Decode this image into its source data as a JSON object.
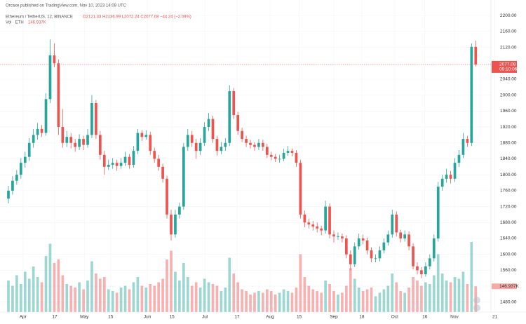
{
  "chart_data": {
    "type": "candlestick",
    "published": "Orcaxe published on TradingView.com, Nov 10, 2023 14:09 UTC",
    "symbol": "Ethereum / TetherUS, 12, BINANCE",
    "ohlc_text": "O2121.33 H2136.99 L2072.24 C2077.08 −44.24 (−2.09%)",
    "volume_title": "Vol · ETH",
    "volume_text": "146.937K",
    "countdown": "09:10:06",
    "up_color": "#26a69a",
    "down_color": "#ef5350",
    "grid": true,
    "xlim": [
      -0.5,
      117.5
    ],
    "xticks": [
      {
        "value": 3.5,
        "label": "Apr"
      },
      {
        "value": 11.1,
        "label": "17"
      },
      {
        "value": 18.2,
        "label": "May"
      },
      {
        "value": 24.5,
        "label": "15"
      },
      {
        "value": 33.3,
        "label": "Jun"
      },
      {
        "value": 39.2,
        "label": "15"
      },
      {
        "value": 47.1,
        "label": "Jul"
      },
      {
        "value": 54.8,
        "label": "17"
      },
      {
        "value": 62.7,
        "label": "Aug"
      },
      {
        "value": 69.7,
        "label": "15"
      },
      {
        "value": 78,
        "label": "Sep"
      },
      {
        "value": 84.7,
        "label": "18"
      },
      {
        "value": 92.6,
        "label": "Oct"
      },
      {
        "value": 99.8,
        "label": "16"
      },
      {
        "value": 106.9,
        "label": "Nov"
      },
      {
        "value": 116.6,
        "label": "21"
      }
    ],
    "ylim": [
      1455,
      2239
    ],
    "yticks": [
      {
        "value": 2200,
        "label": "2200.00"
      },
      {
        "value": 2160,
        "label": "2160.00"
      },
      {
        "value": 2120,
        "label": "2120.00"
      },
      {
        "value": 2040,
        "label": "2040.00"
      },
      {
        "value": 2000,
        "label": "2000.00"
      },
      {
        "value": 1960,
        "label": "1960.00"
      },
      {
        "value": 1920,
        "label": "1920.00"
      },
      {
        "value": 1880,
        "label": "1880.00"
      },
      {
        "value": 1840,
        "label": "1840.00"
      },
      {
        "value": 1800,
        "label": "1800.00"
      },
      {
        "value": 1760,
        "label": "1760.00"
      },
      {
        "value": 1720,
        "label": "1720.00"
      },
      {
        "value": 1680,
        "label": "1680.00"
      },
      {
        "value": 1640,
        "label": "1640.00"
      },
      {
        "value": 1600,
        "label": "1600.00"
      },
      {
        "value": 1560,
        "label": "1560.00"
      },
      {
        "value": 1520,
        "label": "1520.00"
      },
      {
        "value": 1480,
        "label": "1480.00"
      }
    ],
    "volume_lim": [
      0,
      1000
    ],
    "candles": [
      [
        1740,
        1772,
        1728,
        1760
      ],
      [
        1760,
        1797,
        1750,
        1785
      ],
      [
        1785,
        1812,
        1775,
        1800
      ],
      [
        1800,
        1842,
        1790,
        1830
      ],
      [
        1830,
        1858,
        1818,
        1845
      ],
      [
        1845,
        1892,
        1835,
        1880
      ],
      [
        1880,
        1915,
        1868,
        1900
      ],
      [
        1900,
        1930,
        1888,
        1915
      ],
      [
        1915,
        1925,
        1895,
        1905
      ],
      [
        1905,
        2005,
        1898,
        1990
      ],
      [
        1990,
        2140,
        1980,
        2100
      ],
      [
        2100,
        2130,
        2070,
        2080
      ],
      [
        2080,
        2090,
        1900,
        1920
      ],
      [
        1920,
        1965,
        1868,
        1880
      ],
      [
        1880,
        1910,
        1870,
        1895
      ],
      [
        1895,
        1905,
        1866,
        1880
      ],
      [
        1880,
        1890,
        1858,
        1870
      ],
      [
        1870,
        1902,
        1862,
        1890
      ],
      [
        1890,
        1898,
        1862,
        1875
      ],
      [
        1875,
        1915,
        1868,
        1900
      ],
      [
        1900,
        2000,
        1892,
        1980
      ],
      [
        1980,
        1988,
        1890,
        1900
      ],
      [
        1900,
        1910,
        1838,
        1850
      ],
      [
        1850,
        1860,
        1800,
        1820
      ],
      [
        1820,
        1838,
        1812,
        1825
      ],
      [
        1825,
        1842,
        1815,
        1830
      ],
      [
        1830,
        1838,
        1810,
        1822
      ],
      [
        1822,
        1842,
        1815,
        1830
      ],
      [
        1830,
        1858,
        1822,
        1845
      ],
      [
        1845,
        1852,
        1815,
        1825
      ],
      [
        1825,
        1872,
        1818,
        1860
      ],
      [
        1860,
        1915,
        1852,
        1905
      ],
      [
        1905,
        1912,
        1885,
        1895
      ],
      [
        1895,
        1912,
        1888,
        1900
      ],
      [
        1900,
        1908,
        1850,
        1860
      ],
      [
        1860,
        1868,
        1830,
        1840
      ],
      [
        1840,
        1850,
        1810,
        1820
      ],
      [
        1820,
        1828,
        1780,
        1790
      ],
      [
        1790,
        1798,
        1690,
        1700
      ],
      [
        1700,
        1712,
        1635,
        1650
      ],
      [
        1650,
        1712,
        1642,
        1700
      ],
      [
        1700,
        1730,
        1690,
        1720
      ],
      [
        1720,
        1880,
        1712,
        1870
      ],
      [
        1870,
        1915,
        1860,
        1900
      ],
      [
        1900,
        1910,
        1870,
        1880
      ],
      [
        1880,
        1890,
        1840,
        1860
      ],
      [
        1860,
        1892,
        1850,
        1880
      ],
      [
        1880,
        1932,
        1872,
        1920
      ],
      [
        1920,
        1955,
        1910,
        1940
      ],
      [
        1940,
        1948,
        1880,
        1890
      ],
      [
        1890,
        1898,
        1848,
        1860
      ],
      [
        1860,
        1882,
        1852,
        1870
      ],
      [
        1870,
        1892,
        1860,
        1880
      ],
      [
        1880,
        2025,
        1872,
        2010
      ],
      [
        2010,
        2018,
        1940,
        1950
      ],
      [
        1950,
        1958,
        1900,
        1910
      ],
      [
        1910,
        1918,
        1882,
        1890
      ],
      [
        1890,
        1898,
        1870,
        1880
      ],
      [
        1880,
        1888,
        1866,
        1875
      ],
      [
        1875,
        1882,
        1860,
        1870
      ],
      [
        1870,
        1890,
        1862,
        1880
      ],
      [
        1880,
        1888,
        1860,
        1870
      ],
      [
        1870,
        1878,
        1842,
        1850
      ],
      [
        1850,
        1858,
        1836,
        1845
      ],
      [
        1845,
        1852,
        1832,
        1840
      ],
      [
        1840,
        1850,
        1830,
        1840
      ],
      [
        1840,
        1865,
        1834,
        1855
      ],
      [
        1855,
        1872,
        1848,
        1860
      ],
      [
        1860,
        1866,
        1846,
        1855
      ],
      [
        1855,
        1862,
        1820,
        1830
      ],
      [
        1830,
        1838,
        1690,
        1700
      ],
      [
        1700,
        1710,
        1668,
        1680
      ],
      [
        1680,
        1690,
        1665,
        1675
      ],
      [
        1675,
        1684,
        1660,
        1670
      ],
      [
        1670,
        1680,
        1655,
        1665
      ],
      [
        1665,
        1672,
        1648,
        1660
      ],
      [
        1660,
        1735,
        1652,
        1720
      ],
      [
        1720,
        1728,
        1640,
        1650
      ],
      [
        1650,
        1660,
        1630,
        1645
      ],
      [
        1645,
        1655,
        1636,
        1645
      ],
      [
        1645,
        1652,
        1630,
        1640
      ],
      [
        1640,
        1648,
        1590,
        1600
      ],
      [
        1600,
        1610,
        1560,
        1575
      ],
      [
        1575,
        1630,
        1568,
        1620
      ],
      [
        1620,
        1652,
        1612,
        1640
      ],
      [
        1640,
        1650,
        1625,
        1635
      ],
      [
        1635,
        1642,
        1600,
        1610
      ],
      [
        1610,
        1618,
        1580,
        1590
      ],
      [
        1590,
        1600,
        1580,
        1590
      ],
      [
        1590,
        1620,
        1582,
        1610
      ],
      [
        1610,
        1640,
        1602,
        1630
      ],
      [
        1630,
        1660,
        1622,
        1650
      ],
      [
        1650,
        1712,
        1642,
        1700
      ],
      [
        1700,
        1708,
        1645,
        1655
      ],
      [
        1655,
        1662,
        1630,
        1640
      ],
      [
        1640,
        1660,
        1632,
        1650
      ],
      [
        1650,
        1658,
        1610,
        1620
      ],
      [
        1620,
        1628,
        1562,
        1570
      ],
      [
        1570,
        1580,
        1550,
        1560
      ],
      [
        1560,
        1568,
        1540,
        1550
      ],
      [
        1550,
        1580,
        1544,
        1570
      ],
      [
        1570,
        1600,
        1562,
        1590
      ],
      [
        1590,
        1650,
        1582,
        1640
      ],
      [
        1640,
        1782,
        1632,
        1770
      ],
      [
        1770,
        1800,
        1760,
        1790
      ],
      [
        1790,
        1815,
        1780,
        1800
      ],
      [
        1800,
        1810,
        1778,
        1790
      ],
      [
        1790,
        1842,
        1782,
        1830
      ],
      [
        1830,
        1862,
        1820,
        1850
      ],
      [
        1850,
        1905,
        1842,
        1890
      ],
      [
        1890,
        1898,
        1870,
        1880
      ],
      [
        1880,
        2130,
        1872,
        2121.33
      ],
      [
        2121.33,
        2136.99,
        2072.24,
        2077.08
      ]
    ],
    "volume": [
      180,
      150,
      210,
      160,
      230,
      190,
      260,
      200,
      170,
      320,
      390,
      280,
      300,
      210,
      160,
      150,
      140,
      170,
      130,
      180,
      290,
      220,
      190,
      200,
      130,
      120,
      110,
      140,
      150,
      130,
      170,
      200,
      150,
      140,
      160,
      150,
      170,
      190,
      300,
      350,
      230,
      180,
      280,
      200,
      150,
      170,
      140,
      190,
      170,
      160,
      150,
      120,
      140,
      310,
      220,
      170,
      130,
      120,
      100,
      110,
      120,
      110,
      130,
      120,
      100,
      110,
      130,
      120,
      110,
      140,
      330,
      200,
      150,
      130,
      120,
      110,
      180,
      160,
      120,
      100,
      110,
      150,
      250,
      190,
      140,
      120,
      130,
      140,
      90,
      110,
      130,
      150,
      220,
      170,
      120,
      110,
      140,
      200,
      180,
      150,
      170,
      160,
      210,
      330,
      220,
      180,
      170,
      200,
      190,
      230,
      160,
      400,
      146.937
    ]
  }
}
